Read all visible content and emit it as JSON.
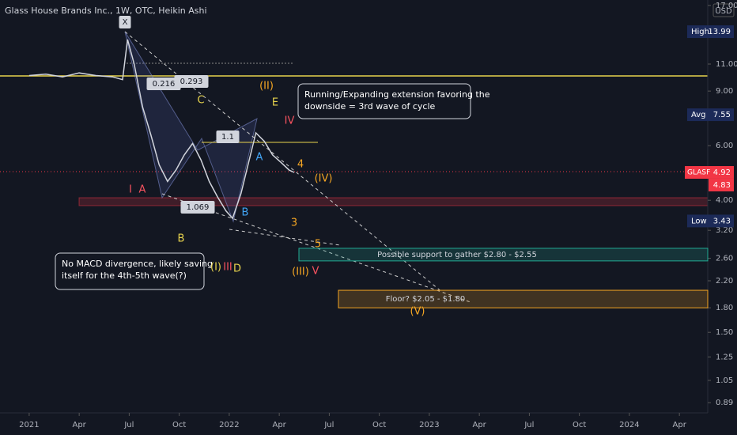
{
  "chart_data": {
    "type": "line",
    "title": "Glass House Brands Inc., 1W, OTC, Heikin Ashi",
    "currency": "USD",
    "log_scale": true,
    "x": [
      0,
      1,
      2,
      3,
      4,
      5,
      5.6,
      5.9,
      6.3,
      6.8,
      7.3,
      7.8,
      8.3,
      8.8,
      9.3,
      9.8,
      10.3,
      10.8,
      11.3,
      11.8,
      12.2,
      12.7,
      13.2,
      13.6,
      14.1,
      14.6,
      15.1,
      15.6,
      15.9
    ],
    "series": [
      {
        "name": "GLASF",
        "color": "#d1d4dc",
        "values": [
          10.1,
          10.2,
          10.0,
          10.3,
          10.1,
          10.0,
          9.8,
          13.2,
          11.0,
          8.0,
          6.5,
          5.2,
          4.6,
          5.0,
          5.6,
          6.1,
          5.4,
          4.6,
          4.1,
          3.7,
          3.5,
          4.2,
          5.4,
          6.6,
          6.2,
          5.6,
          5.3,
          5.0,
          4.92
        ]
      }
    ],
    "xlim": [
      -1.75,
      40.7
    ],
    "xticks": [
      {
        "value": 0,
        "label": "2021"
      },
      {
        "value": 3,
        "label": "Apr"
      },
      {
        "value": 6,
        "label": "Jul"
      },
      {
        "value": 9,
        "label": "Oct"
      },
      {
        "value": 12,
        "label": "2022"
      },
      {
        "value": 15,
        "label": "Apr"
      },
      {
        "value": 18,
        "label": "Jul"
      },
      {
        "value": 21,
        "label": "Oct"
      },
      {
        "value": 24,
        "label": "2023"
      },
      {
        "value": 27,
        "label": "Apr"
      },
      {
        "value": 30,
        "label": "Jul"
      },
      {
        "value": 33,
        "label": "Oct"
      },
      {
        "value": 36,
        "label": "2024"
      },
      {
        "value": 39,
        "label": "Apr"
      }
    ],
    "ylim": [
      0.825,
      17.7
    ],
    "yticks": [
      {
        "value": 17,
        "label": "17.00"
      },
      {
        "value": 11,
        "label": "11.00"
      },
      {
        "value": 9,
        "label": "9.00"
      },
      {
        "value": 6,
        "label": "6.00"
      },
      {
        "value": 4,
        "label": "4.00"
      },
      {
        "value": 3.2,
        "label": "3.20"
      },
      {
        "value": 2.6,
        "label": "2.60"
      },
      {
        "value": 2.2,
        "label": "2.20"
      },
      {
        "value": 1.8,
        "label": "1.80"
      },
      {
        "value": 1.5,
        "label": "1.50"
      },
      {
        "value": 1.25,
        "label": "1.25"
      },
      {
        "value": 1.05,
        "label": "1.05"
      },
      0.89
    ],
    "price_labels": [
      {
        "label": "High",
        "value": 13.99,
        "color": "#1c2a58"
      },
      {
        "label": "Avg",
        "value": 7.55,
        "color": "#1c2a58"
      },
      {
        "label": "Low",
        "value": 3.43,
        "color": "#1c2a58"
      }
    ],
    "last_values": [
      4.92,
      4.83
    ],
    "last_color": "#f23645",
    "zones": [
      {
        "label": "Possible support to gather $2.80 - $2.55",
        "range": [
          2.55,
          2.8
        ],
        "color": "#22ab94"
      },
      {
        "label": "Floor? $2.05 - $1.80",
        "range": [
          1.8,
          2.05
        ],
        "color": "#f5a623"
      }
    ],
    "callouts": [
      [
        "Running/Expanding extension favoring the",
        "downside = 3rd wave of cycle"
      ],
      [
        "No MACD divergence, likely saving",
        "itself for the 4th-5th wave(?)"
      ]
    ],
    "annotations": [
      "X",
      "0.216",
      "0.293",
      "C",
      "(II)",
      "E",
      "IV",
      "1.1",
      "A",
      "B",
      "1.069",
      "B",
      "(I)",
      "III",
      "D",
      "(III)",
      "V",
      "(IV)",
      "4",
      "3",
      "5",
      "(V)",
      "I",
      "A"
    ]
  }
}
